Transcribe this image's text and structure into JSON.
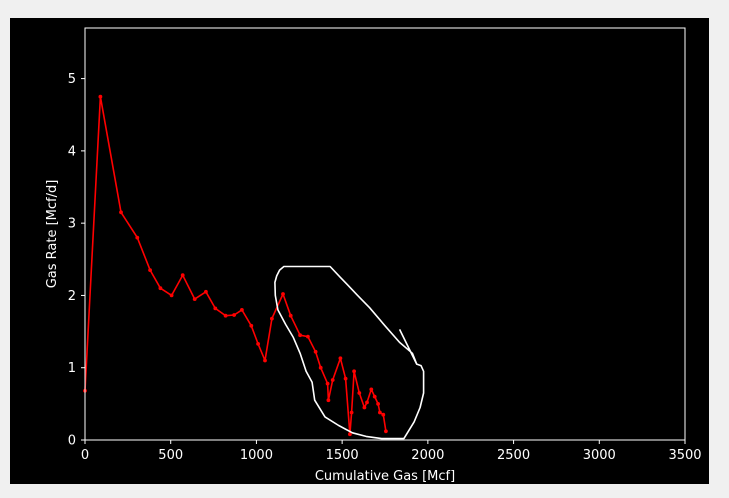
{
  "chart_data": {
    "type": "line",
    "title": "",
    "xlabel": "Cumulative Gas [Mcf]",
    "ylabel": "Gas Rate [Mcf/d]",
    "xlim": [
      0,
      3500
    ],
    "ylim": [
      0,
      5.7
    ],
    "xticks": [
      0,
      500,
      1000,
      1500,
      2000,
      2500,
      3000,
      3500
    ],
    "yticks": [
      0,
      1,
      2,
      3,
      4,
      5
    ],
    "grid": false,
    "colors": {
      "figure_background": "#000000",
      "outer_background": "#f0f0f0",
      "axes_spine": "#ffffff",
      "text": "#ffffff",
      "series": "#ff0000",
      "outline": "#ffffff"
    },
    "series": [
      {
        "style": "line-with-markers",
        "color": "#ff0000",
        "x": [
          0,
          90,
          210,
          305,
          380,
          440,
          505,
          570,
          640,
          705,
          760,
          820,
          870,
          915,
          970,
          1010,
          1050,
          1090,
          1155,
          1200,
          1255,
          1300,
          1345,
          1375,
          1415,
          1420,
          1445,
          1490,
          1520,
          1545,
          1555,
          1570,
          1600,
          1630,
          1645,
          1670,
          1690,
          1710,
          1720,
          1740,
          1755
        ],
        "y": [
          0.68,
          4.75,
          3.15,
          2.8,
          2.35,
          2.1,
          2.0,
          2.28,
          1.95,
          2.05,
          1.82,
          1.72,
          1.73,
          1.8,
          1.58,
          1.33,
          1.1,
          1.68,
          2.02,
          1.72,
          1.45,
          1.43,
          1.22,
          1.0,
          0.78,
          0.55,
          0.83,
          1.13,
          0.85,
          0.08,
          0.38,
          0.95,
          0.65,
          0.45,
          0.52,
          0.7,
          0.6,
          0.5,
          0.38,
          0.35,
          0.12
        ]
      },
      {
        "style": "outline",
        "color": "#ffffff",
        "x": [
          1835,
          1935,
          1910,
          1835,
          1750,
          1660,
          1590,
          1530,
          1490,
          1430,
          1380,
          1320,
          1205,
          1160,
          1135,
          1118,
          1108,
          1110,
          1125,
          1170,
          1215,
          1255,
          1290,
          1325,
          1340,
          1400,
          1480,
          1560,
          1640,
          1730,
          1860,
          1920,
          1955,
          1975,
          1975,
          1960,
          1935
        ],
        "y": [
          1.53,
          1.05,
          1.2,
          1.35,
          1.58,
          1.83,
          2.0,
          2.15,
          2.25,
          2.4,
          2.4,
          2.4,
          2.4,
          2.4,
          2.35,
          2.27,
          2.18,
          2.0,
          1.8,
          1.6,
          1.42,
          1.2,
          0.95,
          0.8,
          0.55,
          0.32,
          0.2,
          0.1,
          0.05,
          0.02,
          0.02,
          0.25,
          0.45,
          0.65,
          0.95,
          1.03,
          1.05
        ]
      }
    ]
  }
}
